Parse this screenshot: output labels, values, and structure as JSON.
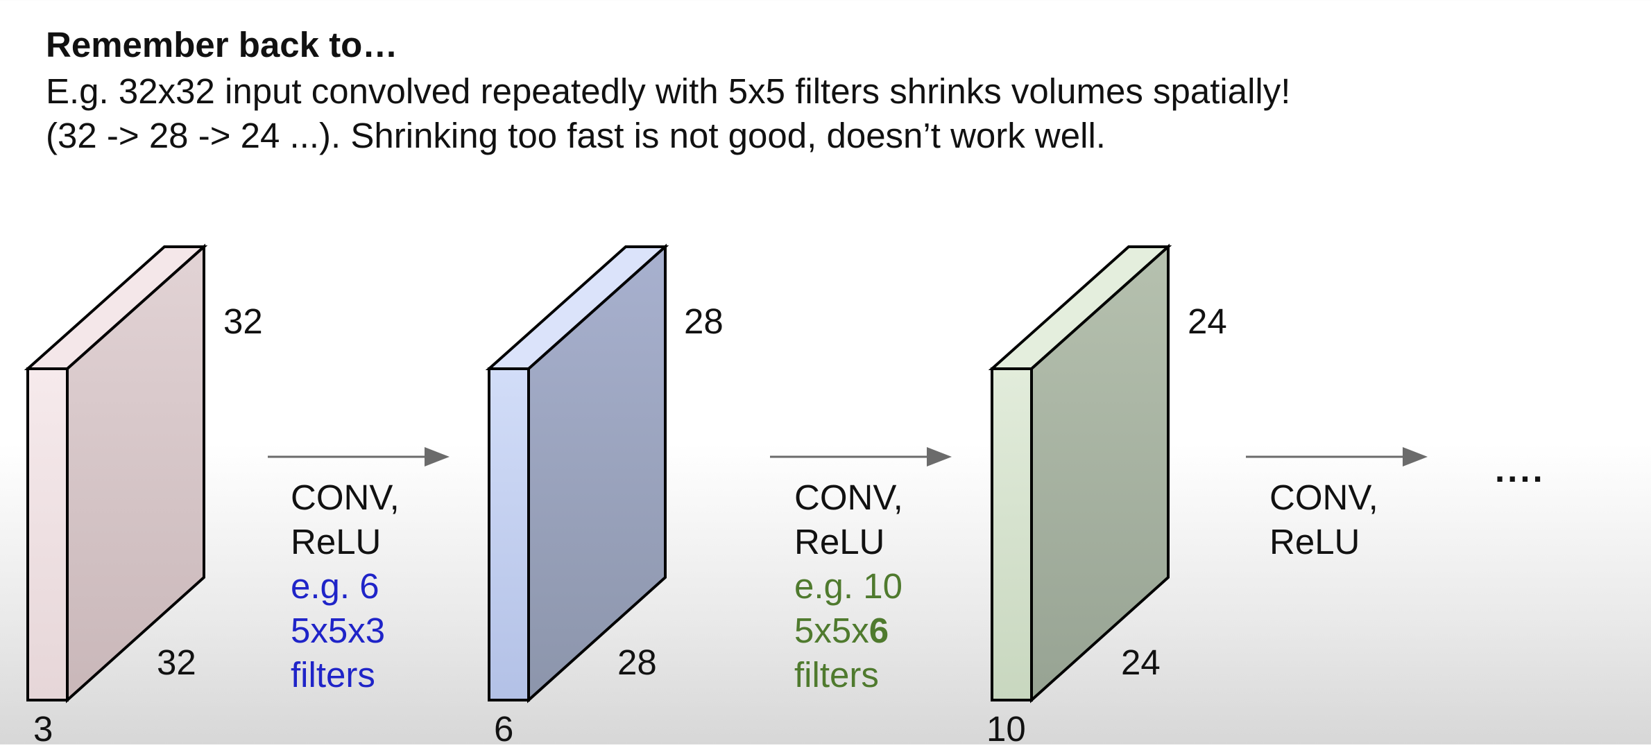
{
  "heading": "Remember back to…",
  "description": {
    "line1": "E.g. 32x32 input convolved repeatedly with 5x5 filters shrinks volumes spatially!",
    "line2": "(32 -> 28 -> 24 ...). Shrinking too fast is not good, doesn’t work well."
  },
  "volumes": [
    {
      "height_label": "32",
      "width_label": "32",
      "depth_label": "3"
    },
    {
      "height_label": "28",
      "width_label": "28",
      "depth_label": "6"
    },
    {
      "height_label": "24",
      "width_label": "24",
      "depth_label": "10"
    }
  ],
  "layers": [
    {
      "op_line1": "CONV,",
      "op_line2": "ReLU",
      "filters_line1": "e.g. 6",
      "filters_line2": "5x5x3",
      "filters_line3": "filters"
    },
    {
      "op_line1": "CONV,",
      "op_line2": "ReLU",
      "filters_line1": "e.g. 10",
      "filters_line2_prefix": "5x5x",
      "filters_line2_bold": "6",
      "filters_line3": "filters"
    },
    {
      "op_line1": "CONV,",
      "op_line2": "ReLU"
    }
  ],
  "ellipsis": "....",
  "colors": {
    "volume1_face": "#f2e4e6",
    "volume1_side": "#d6c5c7",
    "volume2_face": "#ccd8f4",
    "volume2_side": "#98a2bd",
    "volume3_face": "#dce8d4",
    "volume3_side": "#a9b5a3",
    "arrow": "#6b6b6b",
    "filter_text_1": "#1f24c8",
    "filter_text_2": "#4f7a2e"
  }
}
